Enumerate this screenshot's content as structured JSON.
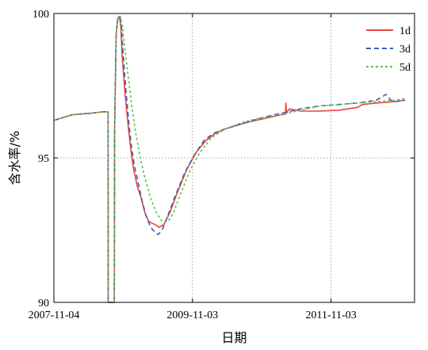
{
  "chart_data": {
    "type": "line",
    "title": "",
    "xlabel": "日期",
    "ylabel": "含水率/%",
    "x_ticks": [
      "2007-11-04",
      "2009-11-03",
      "2011-11-03"
    ],
    "x_tick_positions": [
      0,
      730,
      1460
    ],
    "xlim": [
      0,
      1900
    ],
    "ylim": [
      90,
      100
    ],
    "y_ticks": [
      90,
      95,
      100
    ],
    "grid": "dotted",
    "legend_position": "top-right",
    "series": [
      {
        "name": "1d",
        "color": "#e8453c",
        "dash": "solid",
        "points": [
          [
            0,
            96.3
          ],
          [
            50,
            96.4
          ],
          [
            100,
            96.5
          ],
          [
            200,
            96.55
          ],
          [
            260,
            96.6
          ],
          [
            285,
            96.6
          ],
          [
            286,
            90
          ],
          [
            318,
            90
          ],
          [
            320,
            96
          ],
          [
            328,
            99.2
          ],
          [
            335,
            99.8
          ],
          [
            345,
            99.9
          ],
          [
            352,
            99.6
          ],
          [
            360,
            98.5
          ],
          [
            375,
            97.2
          ],
          [
            390,
            96.2
          ],
          [
            405,
            95.3
          ],
          [
            420,
            94.6
          ],
          [
            440,
            94
          ],
          [
            460,
            93.6
          ],
          [
            480,
            93.1
          ],
          [
            500,
            92.8
          ],
          [
            530,
            92.7
          ],
          [
            555,
            92.6
          ],
          [
            580,
            92.7
          ],
          [
            610,
            93.1
          ],
          [
            650,
            93.8
          ],
          [
            700,
            94.6
          ],
          [
            750,
            95.2
          ],
          [
            800,
            95.6
          ],
          [
            850,
            95.85
          ],
          [
            900,
            96
          ],
          [
            950,
            96.1
          ],
          [
            1000,
            96.2
          ],
          [
            1030,
            96.25
          ],
          [
            1100,
            96.35
          ],
          [
            1200,
            96.5
          ],
          [
            1220,
            96.52
          ],
          [
            1222,
            96.9
          ],
          [
            1226,
            96.55
          ],
          [
            1240,
            96.7
          ],
          [
            1300,
            96.62
          ],
          [
            1400,
            96.62
          ],
          [
            1500,
            96.65
          ],
          [
            1600,
            96.75
          ],
          [
            1625,
            96.85
          ],
          [
            1700,
            96.9
          ],
          [
            1800,
            96.95
          ],
          [
            1850,
            97.0
          ]
        ]
      },
      {
        "name": "3d",
        "color": "#3e5fb2",
        "dash": "6,4",
        "points": [
          [
            0,
            96.3
          ],
          [
            50,
            96.4
          ],
          [
            100,
            96.5
          ],
          [
            200,
            96.55
          ],
          [
            260,
            96.6
          ],
          [
            285,
            96.6
          ],
          [
            286,
            90
          ],
          [
            318,
            90
          ],
          [
            320,
            96
          ],
          [
            328,
            99.3
          ],
          [
            338,
            99.85
          ],
          [
            348,
            99.9
          ],
          [
            356,
            99.5
          ],
          [
            365,
            98.6
          ],
          [
            380,
            97.3
          ],
          [
            395,
            96.2
          ],
          [
            410,
            95.3
          ],
          [
            425,
            94.7
          ],
          [
            445,
            94.1
          ],
          [
            465,
            93.5
          ],
          [
            485,
            93
          ],
          [
            510,
            92.6
          ],
          [
            535,
            92.4
          ],
          [
            550,
            92.35
          ],
          [
            570,
            92.5
          ],
          [
            600,
            93
          ],
          [
            640,
            93.7
          ],
          [
            690,
            94.5
          ],
          [
            740,
            95.1
          ],
          [
            790,
            95.6
          ],
          [
            840,
            95.85
          ],
          [
            900,
            96
          ],
          [
            1000,
            96.2
          ],
          [
            1100,
            96.4
          ],
          [
            1200,
            96.55
          ],
          [
            1300,
            96.7
          ],
          [
            1400,
            96.8
          ],
          [
            1500,
            96.85
          ],
          [
            1600,
            96.9
          ],
          [
            1700,
            97.0
          ],
          [
            1750,
            97.2
          ],
          [
            1775,
            97.0
          ],
          [
            1800,
            96.95
          ],
          [
            1850,
            97.0
          ]
        ]
      },
      {
        "name": "5d",
        "color": "#5cc14a",
        "dash": "3,3",
        "points": [
          [
            0,
            96.3
          ],
          [
            50,
            96.4
          ],
          [
            100,
            96.5
          ],
          [
            200,
            96.55
          ],
          [
            260,
            96.6
          ],
          [
            285,
            96.6
          ],
          [
            286,
            90
          ],
          [
            318,
            90
          ],
          [
            320,
            96
          ],
          [
            328,
            99.3
          ],
          [
            338,
            99.85
          ],
          [
            350,
            99.9
          ],
          [
            360,
            99.6
          ],
          [
            372,
            98.9
          ],
          [
            390,
            97.9
          ],
          [
            410,
            96.8
          ],
          [
            430,
            95.9
          ],
          [
            455,
            95
          ],
          [
            480,
            94.3
          ],
          [
            510,
            93.6
          ],
          [
            540,
            93.1
          ],
          [
            570,
            92.8
          ],
          [
            600,
            92.8
          ],
          [
            630,
            93.1
          ],
          [
            670,
            93.8
          ],
          [
            720,
            94.6
          ],
          [
            770,
            95.2
          ],
          [
            830,
            95.7
          ],
          [
            900,
            96
          ],
          [
            1000,
            96.25
          ],
          [
            1100,
            96.4
          ],
          [
            1200,
            96.5
          ],
          [
            1300,
            96.65
          ],
          [
            1400,
            96.8
          ],
          [
            1500,
            96.85
          ],
          [
            1600,
            96.9
          ],
          [
            1700,
            96.95
          ],
          [
            1800,
            97.0
          ],
          [
            1850,
            97.05
          ]
        ]
      }
    ]
  }
}
